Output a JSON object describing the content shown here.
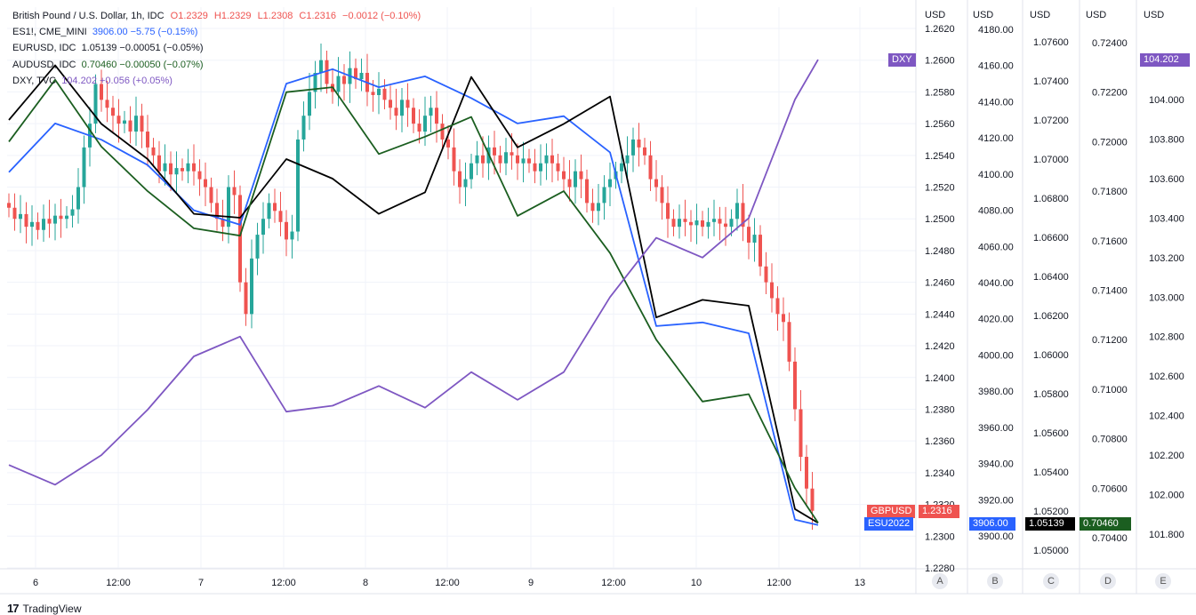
{
  "legend": {
    "main": {
      "symbol": "British Pound / U.S. Dollar, 1h, IDC",
      "o": "O1.2329",
      "h": "H1.2329",
      "l": "L1.2308",
      "c": "C1.2316",
      "chg": "−0.0012 (−0.10%)"
    },
    "series": [
      {
        "symbol": "ES1!, CME_MINI",
        "value": "3906.00  −5.75 (−0.15%)",
        "color": "#2962ff"
      },
      {
        "symbol": "EURUSD, IDC",
        "value": "1.05139  −0.00051 (−0.05%)",
        "color": "#131722"
      },
      {
        "symbol": "AUDUSD, IDC",
        "value": "0.70460  −0.00050 (−0.07%)",
        "color": "#1b5e20"
      },
      {
        "symbol": "DXY, TVC",
        "value": "104.202  +0.056 (+0.05%)",
        "color": "#7e57c2"
      }
    ]
  },
  "axes": {
    "unit": "USD",
    "letters": [
      "A",
      "B",
      "C",
      "D",
      "E"
    ],
    "A": {
      "ticks": [
        "1.2620",
        "1.2600",
        "1.2580",
        "1.2560",
        "1.2540",
        "1.2520",
        "1.2500",
        "1.2480",
        "1.2460",
        "1.2440",
        "1.2420",
        "1.2400",
        "1.2380",
        "1.2360",
        "1.2340",
        "1.2320",
        "1.2300",
        "1.2280"
      ],
      "range": [
        1.228,
        1.262
      ]
    },
    "B": {
      "ticks": [
        "4180.00",
        "4160.00",
        "4140.00",
        "4120.00",
        "4100.00",
        "4080.00",
        "4060.00",
        "4040.00",
        "4020.00",
        "4000.00",
        "3980.00",
        "3960.00",
        "3940.00",
        "3920.00",
        "3900.00"
      ],
      "range": [
        3900,
        4180
      ]
    },
    "C": {
      "ticks": [
        "1.07600",
        "1.07400",
        "1.07200",
        "1.07000",
        "1.06800",
        "1.06600",
        "1.06400",
        "1.06200",
        "1.06000",
        "1.05800",
        "1.05600",
        "1.05400",
        "1.05200",
        "1.05000"
      ],
      "range": [
        1.05,
        1.076
      ]
    },
    "D": {
      "ticks": [
        "0.72400",
        "0.72200",
        "0.72000",
        "0.71800",
        "0.71600",
        "0.71400",
        "0.71200",
        "0.71000",
        "0.70800",
        "0.70600",
        "0.70400"
      ],
      "range": [
        0.704,
        0.724
      ]
    },
    "E": {
      "ticks": [
        "104.000",
        "103.800",
        "103.600",
        "103.400",
        "103.200",
        "103.000",
        "102.800",
        "102.600",
        "102.400",
        "102.200",
        "102.000",
        "101.800"
      ],
      "range": [
        101.8,
        104.0
      ]
    }
  },
  "time_axis": [
    "6",
    "12:00",
    "7",
    "12:00",
    "8",
    "12:00",
    "9",
    "12:00",
    "10",
    "12:00",
    "13"
  ],
  "tags": {
    "dxy_label": "DXY",
    "dxy_value": "104.202",
    "gbpusd_label": "GBPUSD",
    "gbpusd_value": "1.2316",
    "esu_label": "ESU2022",
    "es_value": "3906.00",
    "eurusd_value": "1.05139",
    "audusd_value": "0.70460"
  },
  "colors": {
    "up": "#26a69a",
    "down": "#ef5350",
    "es": "#2962ff",
    "eur": "#000000",
    "aud": "#1b5e20",
    "dxy": "#7e57c2"
  },
  "footer": {
    "brand": "TradingView"
  },
  "chart_data": {
    "type": "line",
    "title": "British Pound / U.S. Dollar, 1h, IDC",
    "x_labels": [
      "6",
      "12:00",
      "7",
      "12:00",
      "8",
      "12:00",
      "9",
      "12:00",
      "10",
      "12:00",
      "13"
    ],
    "series": [
      {
        "name": "GBPUSD",
        "type": "candlestick",
        "axis": "A",
        "close": [
          1.2507,
          1.25,
          1.2503,
          1.2495,
          1.2498,
          1.2493,
          1.25,
          1.2497,
          1.2502,
          1.25,
          1.2502,
          1.2506,
          1.252,
          1.2545,
          1.256,
          1.2585,
          1.2575,
          1.257,
          1.2565,
          1.256,
          1.2562,
          1.2555,
          1.2565,
          1.2555,
          1.2545,
          1.254,
          1.253,
          1.2535,
          1.2528,
          1.2532,
          1.253,
          1.2535,
          1.253,
          1.2525,
          1.252,
          1.251,
          1.25,
          1.2495,
          1.252,
          1.2515,
          1.246,
          1.244,
          1.2475,
          1.249,
          1.25,
          1.251,
          1.2505,
          1.2498,
          1.2487,
          1.2492,
          1.255,
          1.2565,
          1.258,
          1.2592,
          1.26,
          1.2585,
          1.258,
          1.259,
          1.2585,
          1.2595,
          1.2588,
          1.2592,
          1.258,
          1.2578,
          1.2582,
          1.2575,
          1.257,
          1.2565,
          1.2575,
          1.257,
          1.256,
          1.2555,
          1.2565,
          1.257,
          1.256,
          1.255,
          1.2545,
          1.253,
          1.252,
          1.2525,
          1.2535,
          1.254,
          1.2535,
          1.2545,
          1.254,
          1.2535,
          1.2542,
          1.254,
          1.2535,
          1.2538,
          1.2535,
          1.253,
          1.2535,
          1.254,
          1.2535,
          1.253,
          1.2525,
          1.252,
          1.253,
          1.2525,
          1.251,
          1.2505,
          1.251,
          1.252,
          1.2525,
          1.253,
          1.2535,
          1.254,
          1.255,
          1.2545,
          1.254,
          1.2525,
          1.252,
          1.251,
          1.25,
          1.2495,
          1.25,
          1.2498,
          1.2496,
          1.2499,
          1.2495,
          1.2498,
          1.25,
          1.2497,
          1.2495,
          1.25,
          1.251,
          1.2495,
          1.2485,
          1.249,
          1.247,
          1.246,
          1.245,
          1.244,
          1.2435,
          1.241,
          1.238,
          1.235,
          1.233,
          1.2316
        ]
      },
      {
        "name": "ES1!",
        "axis": "B",
        "x": [
          0,
          8,
          16,
          24,
          32,
          40,
          48,
          56,
          64,
          72,
          80,
          88,
          96,
          104,
          112,
          120,
          128,
          136,
          140
        ],
        "values": [
          4101,
          4128,
          4119,
          4105,
          4080,
          4072,
          4150,
          4158,
          4148,
          4154,
          4142,
          4128,
          4132,
          4112,
          4016,
          4018,
          4012,
          3909,
          3906
        ]
      },
      {
        "name": "EURUSD",
        "axis": "C",
        "x": [
          0,
          8,
          16,
          24,
          32,
          40,
          48,
          56,
          64,
          72,
          80,
          88,
          96,
          104,
          112,
          120,
          128,
          136,
          140
        ],
        "values": [
          1.072,
          1.0748,
          1.0718,
          1.07,
          1.0672,
          1.067,
          1.07,
          1.069,
          1.0672,
          1.0683,
          1.0742,
          1.0706,
          1.0718,
          1.0732,
          1.0619,
          1.0628,
          1.0625,
          1.0521,
          1.05139
        ]
      },
      {
        "name": "AUDUSD",
        "axis": "D",
        "x": [
          0,
          8,
          16,
          24,
          32,
          40,
          48,
          56,
          64,
          72,
          80,
          88,
          96,
          104,
          112,
          120,
          128,
          136,
          140
        ],
        "values": [
          0.72,
          0.7225,
          0.7198,
          0.718,
          0.7165,
          0.7162,
          0.722,
          0.7222,
          0.7195,
          0.7202,
          0.721,
          0.717,
          0.718,
          0.7155,
          0.712,
          0.7095,
          0.7098,
          0.706,
          0.7046
        ]
      },
      {
        "name": "DXY",
        "axis": "E",
        "x": [
          0,
          8,
          16,
          24,
          32,
          40,
          48,
          56,
          64,
          72,
          80,
          88,
          96,
          104,
          112,
          120,
          128,
          132,
          136,
          140
        ],
        "values": [
          102.15,
          102.05,
          102.2,
          102.43,
          102.7,
          102.8,
          102.42,
          102.45,
          102.55,
          102.44,
          102.62,
          102.48,
          102.62,
          103.0,
          103.3,
          103.2,
          103.4,
          103.7,
          104.0,
          104.202
        ]
      }
    ]
  }
}
